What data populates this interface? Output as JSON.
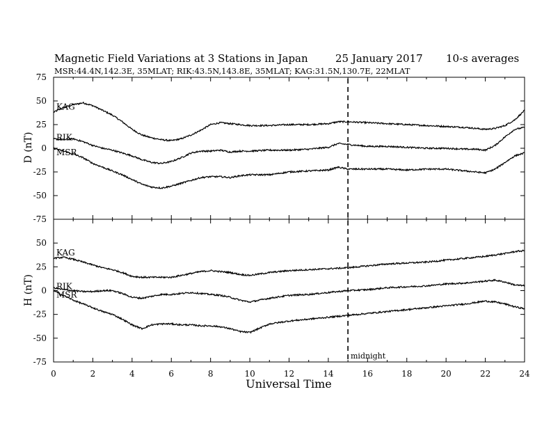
{
  "header": {
    "title": "Magnetic Field Variations at 3 Stations in Japan",
    "date": "25 January  2017",
    "averaging": "10-s averages",
    "stations_line": "MSR:44.4N,142.3E, 35MLAT;  RIK:43.5N,143.8E, 35MLAT;  KAG:31.5N,130.7E, 22MLAT"
  },
  "chart_data": [
    {
      "type": "line",
      "panel": "D",
      "ylabel": "D (nT)",
      "ylim": [
        -75,
        75
      ],
      "yticks": [
        75,
        50,
        25,
        0,
        -25,
        -50,
        -75
      ],
      "xlim": [
        0,
        24
      ],
      "midnight_ut": 15,
      "series": [
        {
          "name": "KAG",
          "x": [
            0,
            0.5,
            1,
            1.5,
            2,
            2.5,
            3,
            3.5,
            4,
            4.5,
            5,
            5.5,
            6,
            6.5,
            7,
            7.5,
            8,
            8.5,
            9,
            9.5,
            10,
            11,
            12,
            13,
            14,
            14.5,
            15,
            16,
            17,
            18,
            19,
            20,
            21,
            22,
            22.5,
            23,
            23.5,
            24
          ],
          "y": [
            38,
            43,
            46,
            48,
            45,
            40,
            35,
            28,
            20,
            14,
            11,
            9,
            8,
            10,
            14,
            19,
            25,
            27,
            26,
            25,
            24,
            24,
            25,
            25,
            26,
            28,
            28,
            27,
            26,
            25,
            24,
            23,
            22,
            20,
            21,
            24,
            30,
            40
          ]
        },
        {
          "name": "RIK",
          "x": [
            0,
            0.5,
            1,
            1.5,
            2,
            2.5,
            3,
            3.5,
            4,
            4.5,
            5,
            5.5,
            6,
            6.5,
            7,
            7.5,
            8,
            8.5,
            9,
            9.5,
            10,
            11,
            12,
            13,
            14,
            14.5,
            15,
            16,
            17,
            18,
            19,
            20,
            21,
            21.5,
            22,
            22.5,
            23,
            23.5,
            24
          ],
          "y": [
            10,
            9,
            10,
            7,
            3,
            0,
            -2,
            -5,
            -8,
            -12,
            -15,
            -16,
            -14,
            -10,
            -5,
            -3,
            -3,
            -2,
            -4,
            -3,
            -3,
            -2,
            -2,
            -1,
            1,
            5,
            4,
            2,
            2,
            1,
            0,
            0,
            -1,
            -1,
            -2,
            3,
            12,
            20,
            22
          ]
        },
        {
          "name": "MSR",
          "x": [
            0,
            0.5,
            1,
            1.5,
            2,
            2.5,
            3,
            3.5,
            4,
            4.5,
            5,
            5.5,
            6,
            6.5,
            7,
            7.5,
            8,
            8.5,
            9,
            9.5,
            10,
            11,
            12,
            13,
            14,
            14.5,
            15,
            16,
            17,
            18,
            19,
            20,
            21,
            22,
            22.5,
            23,
            23.5,
            24
          ],
          "y": [
            0,
            -3,
            -6,
            -10,
            -16,
            -20,
            -24,
            -28,
            -33,
            -38,
            -41,
            -42,
            -40,
            -37,
            -34,
            -31,
            -30,
            -30,
            -31,
            -29,
            -28,
            -28,
            -25,
            -24,
            -23,
            -20,
            -22,
            -22,
            -22,
            -23,
            -22,
            -22,
            -24,
            -26,
            -22,
            -15,
            -8,
            -5
          ]
        }
      ]
    },
    {
      "type": "line",
      "panel": "H",
      "ylabel": "H (nT)",
      "xlabel": "Universal Time",
      "ylim": [
        -75,
        75
      ],
      "yticks": [
        50,
        25,
        0,
        -25,
        -50,
        -75
      ],
      "xlim": [
        0,
        24
      ],
      "xticks": [
        0,
        2,
        4,
        6,
        8,
        10,
        12,
        14,
        16,
        18,
        20,
        22,
        24
      ],
      "midnight_ut": 15,
      "midnight_label": "midnight",
      "series": [
        {
          "name": "KAG",
          "x": [
            0,
            0.5,
            1,
            1.5,
            2,
            2.5,
            3,
            3.5,
            4,
            4.5,
            5,
            5.5,
            6,
            6.5,
            7,
            7.5,
            8,
            8.5,
            9,
            9.5,
            10,
            11,
            12,
            13,
            14,
            15,
            16,
            17,
            18,
            19,
            20,
            21,
            22,
            23,
            23.5,
            24
          ],
          "y": [
            34,
            35,
            33,
            30,
            27,
            24,
            22,
            19,
            15,
            14,
            14,
            14,
            14,
            16,
            18,
            20,
            21,
            20,
            19,
            17,
            16,
            19,
            21,
            22,
            23,
            24,
            26,
            28,
            29,
            30,
            32,
            34,
            36,
            39,
            41,
            42
          ]
        },
        {
          "name": "RIK",
          "x": [
            0,
            0.5,
            1,
            1.5,
            2,
            2.5,
            3,
            3.5,
            4,
            4.5,
            5,
            5.5,
            6,
            6.5,
            7,
            7.5,
            8,
            8.5,
            9,
            9.5,
            10,
            11,
            12,
            13,
            14,
            15,
            16,
            17,
            18,
            19,
            20,
            21,
            22,
            22.5,
            23,
            23.5,
            24
          ],
          "y": [
            3,
            1,
            0,
            -1,
            -1,
            0,
            0,
            -3,
            -7,
            -8,
            -6,
            -4,
            -4,
            -3,
            -2,
            -3,
            -4,
            -5,
            -7,
            -10,
            -12,
            -8,
            -5,
            -4,
            -2,
            0,
            1,
            3,
            4,
            5,
            7,
            8,
            10,
            11,
            9,
            6,
            5
          ]
        },
        {
          "name": "MSR",
          "x": [
            0,
            0.5,
            1,
            1.5,
            2,
            2.5,
            3,
            3.5,
            4,
            4.5,
            5,
            5.5,
            6,
            6.5,
            7,
            7.5,
            8,
            8.5,
            9,
            9.5,
            10,
            11,
            12,
            13,
            14,
            15,
            16,
            17,
            18,
            19,
            20,
            21,
            22,
            22.5,
            23,
            23.5,
            24
          ],
          "y": [
            0,
            -5,
            -10,
            -14,
            -18,
            -22,
            -25,
            -30,
            -36,
            -40,
            -36,
            -35,
            -35,
            -36,
            -36,
            -37,
            -37,
            -38,
            -40,
            -43,
            -44,
            -35,
            -32,
            -30,
            -28,
            -26,
            -24,
            -22,
            -20,
            -18,
            -16,
            -14,
            -11,
            -12,
            -14,
            -17,
            -19
          ]
        }
      ]
    }
  ]
}
